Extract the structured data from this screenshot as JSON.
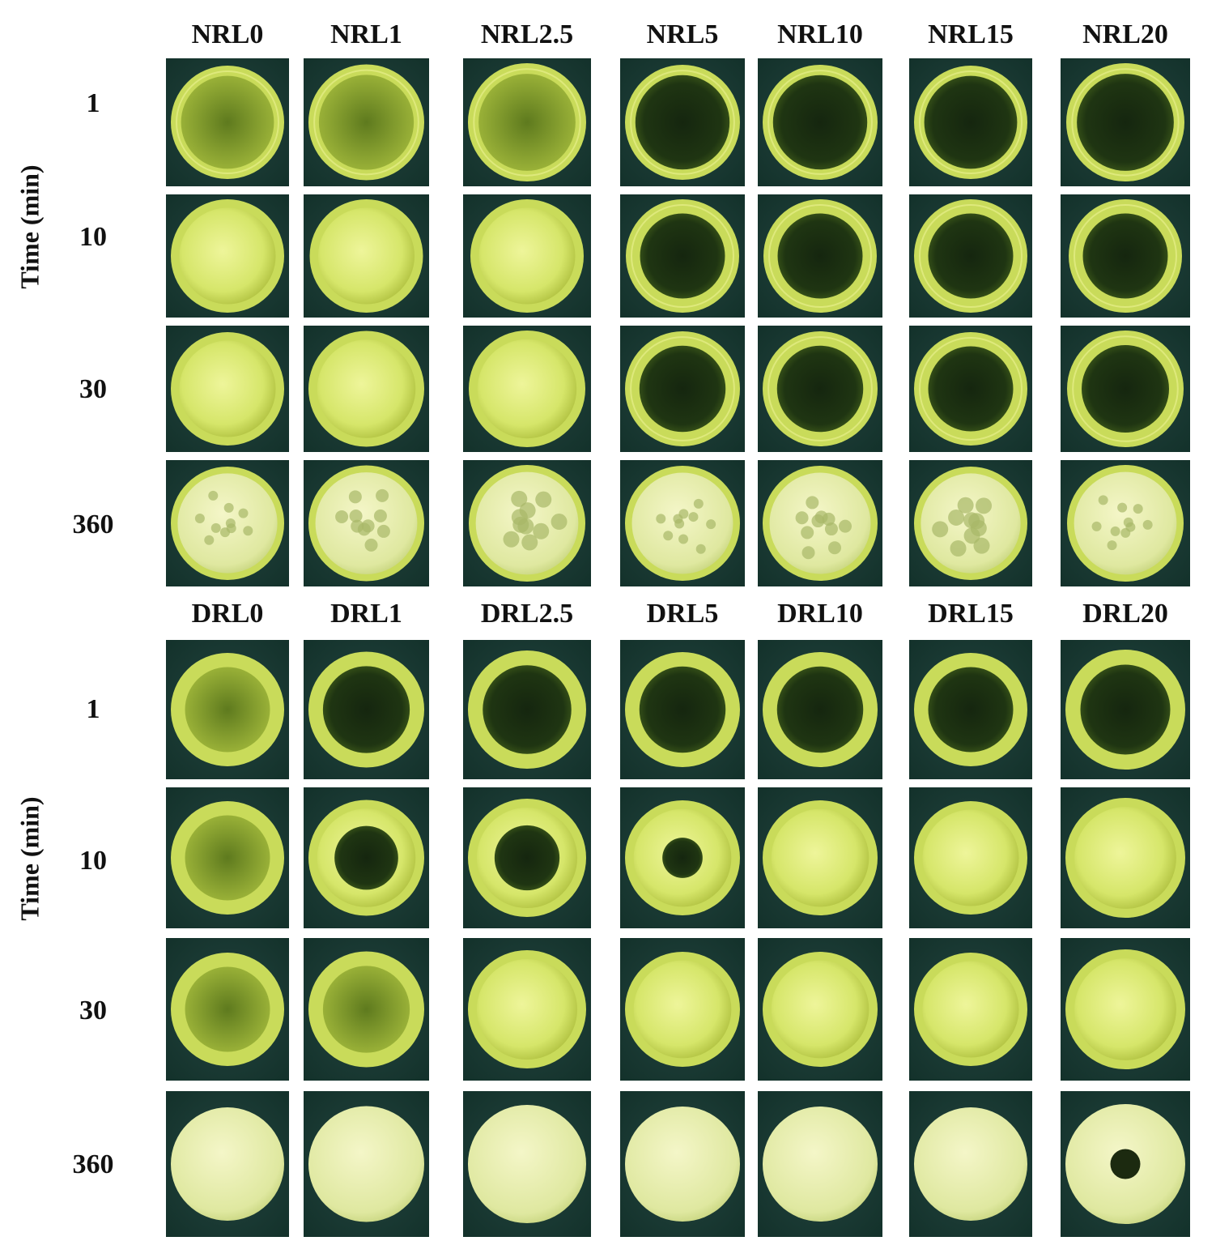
{
  "panels": [
    {
      "columns": [
        "NRL0",
        "NRL1",
        "NRL2.5",
        "NRL5",
        "NRL10",
        "NRL15",
        "NRL20"
      ],
      "axis_label": "Time (min)",
      "rows": [
        "1",
        "10",
        "30",
        "360"
      ]
    },
    {
      "columns": [
        "DRL0",
        "DRL1",
        "DRL2.5",
        "DRL5",
        "DRL10",
        "DRL15",
        "DRL20"
      ],
      "axis_label": "Time (min)",
      "rows": [
        "1",
        "10",
        "30",
        "360"
      ]
    }
  ]
}
